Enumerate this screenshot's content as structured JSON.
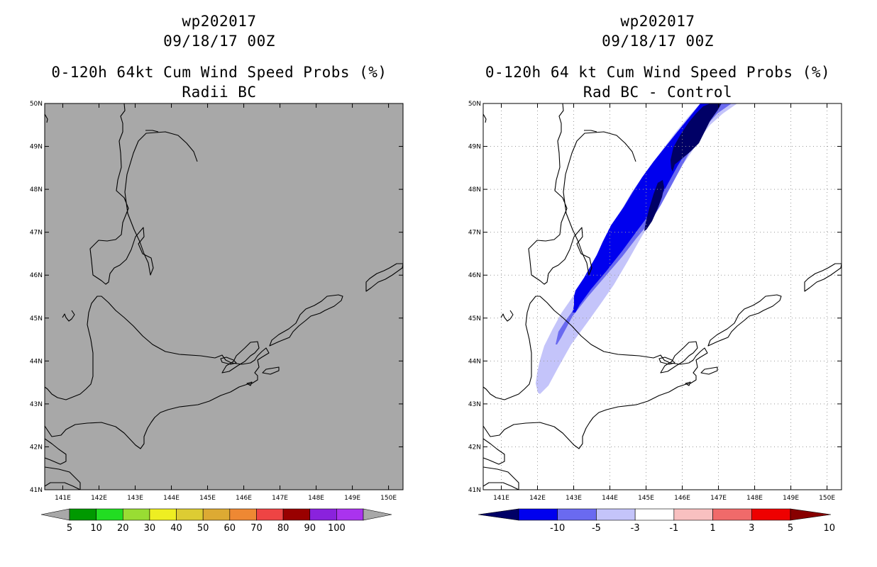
{
  "panels": [
    {
      "id": "left",
      "storm": "wp202017",
      "date": "09/18/17 00Z",
      "title": "0-120h 64kt Cum Wind Speed Probs (%)",
      "subtitle": "Radii BC",
      "background": "#a8a8a8",
      "grid": false,
      "colorbar": {
        "labels": [
          "5",
          "10",
          "20",
          "30",
          "40",
          "50",
          "60",
          "70",
          "80",
          "90",
          "100"
        ],
        "colors": [
          "#a8a8a8",
          "#009900",
          "#22dd22",
          "#99dd33",
          "#eeee22",
          "#ddcc33",
          "#ddaa33",
          "#ee8833",
          "#ee4444",
          "#990000",
          "#8a22dd",
          "#aa33ee",
          "#a8a8a8"
        ]
      }
    },
    {
      "id": "right",
      "storm": "wp202017",
      "date": "09/18/17 00Z",
      "title": "0-120h 64 kt Cum Wind Speed Probs (%)",
      "subtitle": "Rad BC - Control",
      "background": "#ffffff",
      "grid": true,
      "colorbar": {
        "labels": [
          "-10",
          "-5",
          "-3",
          "-1",
          "1",
          "3",
          "5",
          "10"
        ],
        "colors": [
          "#000066",
          "#0000ee",
          "#6a6af0",
          "#c4c4fa",
          "#ffffff",
          "#f8c0c0",
          "#f06a6a",
          "#ee0000",
          "#880000"
        ]
      }
    }
  ],
  "map": {
    "lon_labels": [
      "141E",
      "142E",
      "143E",
      "144E",
      "145E",
      "146E",
      "147E",
      "148E",
      "149E",
      "150E"
    ],
    "lat_labels": [
      "41N",
      "42N",
      "43N",
      "44N",
      "45N",
      "46N",
      "47N",
      "48N",
      "49N",
      "50N"
    ]
  },
  "difference_levels": {
    "bands": [
      "<-10",
      "-10 to -5",
      "-5 to -3",
      "-3 to -1"
    ],
    "colors": [
      "#000066",
      "#0000ee",
      "#6a6af0",
      "#c4c4fa"
    ]
  }
}
